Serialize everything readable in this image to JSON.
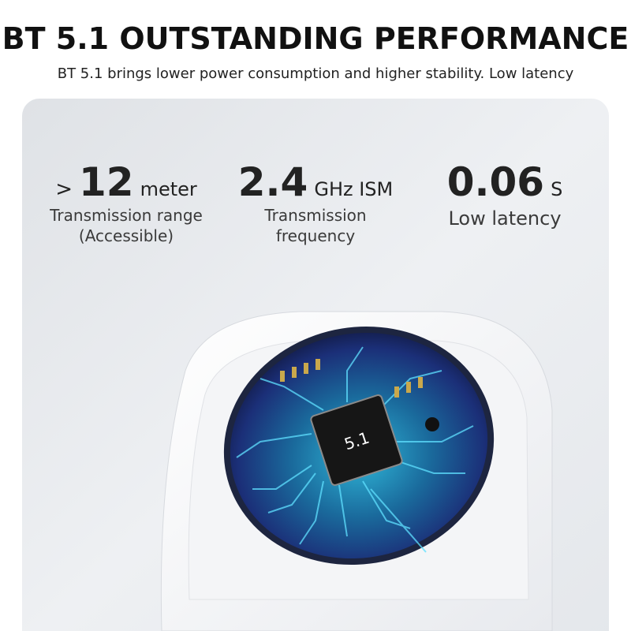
{
  "header": {
    "title": "BT 5.1 OUTSTANDING PERFORMANCE",
    "subtitle": "BT 5.1 brings lower power consumption and higher stability. Low latency"
  },
  "specs": [
    {
      "prefix": ">",
      "value": "12",
      "unit": "meter",
      "caption": [
        "Transmission range",
        "(Accessible)"
      ]
    },
    {
      "value": "2.4",
      "unit": "GHz ISM",
      "caption": [
        "Transmission",
        "frequency"
      ]
    },
    {
      "value": "0.06",
      "unit": "S",
      "caption": [
        "Low latency"
      ]
    }
  ],
  "chip": {
    "label": "5.1"
  }
}
